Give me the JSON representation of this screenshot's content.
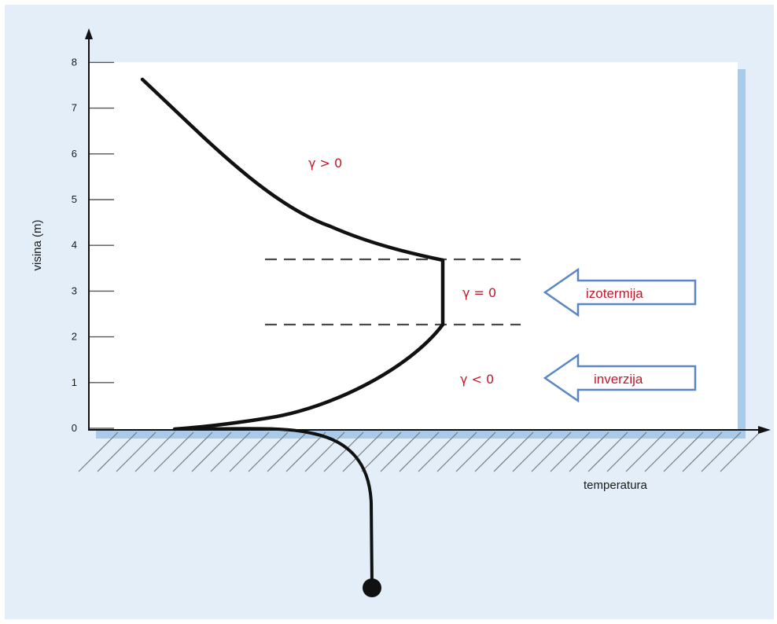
{
  "axes": {
    "y_label": "visina (m)",
    "x_label": "temperatura",
    "y_ticks": [
      "0",
      "1",
      "2",
      "3",
      "4",
      "5",
      "6",
      "7",
      "8"
    ]
  },
  "regions": {
    "upper": "γ > 0",
    "middle": "γ = 0",
    "lower": "γ < 0"
  },
  "arrows": {
    "isothermal": "izotermija",
    "inversion": "inverzija"
  },
  "colors": {
    "background": "#e3eef8",
    "panel_shadow": "#a9cbe9",
    "label_red": "#c2182b",
    "arrow_outline": "#5b86c4",
    "line": "#111111",
    "dashed": "#4a4a4a",
    "hatch": "#7a7a7a"
  }
}
